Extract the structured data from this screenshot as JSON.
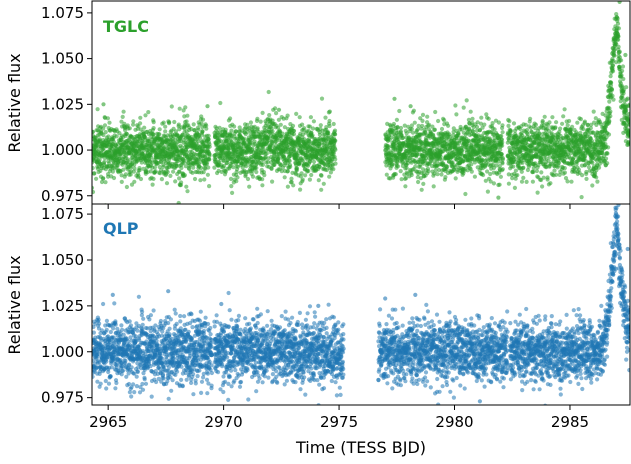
{
  "colors": {
    "tglc": "#2ca02c",
    "qlp": "#1f77b4"
  },
  "chart_data": [
    {
      "type": "scatter",
      "panel_label": "TGLC",
      "color": "#2ca02c",
      "ylabel": "Relative flux",
      "xlim": [
        2964.3,
        2987.6
      ],
      "ylim": [
        0.9705,
        1.0815
      ],
      "yticks": [
        0.975,
        1.0,
        1.025,
        1.05,
        1.075
      ],
      "ytick_labels": [
        "0.975",
        "1.000",
        "1.025",
        "1.050",
        "1.075"
      ],
      "noise_sigma": 0.0075,
      "segments": [
        {
          "x": [
            2964.3,
            2969.4
          ],
          "baseline": 1.0
        },
        {
          "x": [
            2969.6,
            2974.85
          ],
          "baseline": 1.0,
          "bump": {
            "x": 2972.0,
            "height": 0.008,
            "width": 0.25
          }
        },
        {
          "x": [
            2977.0,
            2982.1
          ],
          "baseline": 1.0
        },
        {
          "x": [
            2982.3,
            2987.6
          ],
          "baseline": 1.0
        }
      ],
      "flare": {
        "peak_x": 2987.05,
        "peak_y": 1.065,
        "rise_days": 0.35,
        "decay_days": 0.3
      },
      "outliers": [
        {
          "x": 2964.8,
          "y": 1.025
        },
        {
          "x": 2969.3,
          "y": 1.024
        },
        {
          "x": 2972.4,
          "y": 1.022
        },
        {
          "x": 2974.6,
          "y": 1.021
        },
        {
          "x": 2977.4,
          "y": 1.028
        },
        {
          "x": 2978.1,
          "y": 1.024
        },
        {
          "x": 2981.9,
          "y": 0.974
        },
        {
          "x": 2987.15,
          "y": 1.081
        },
        {
          "x": 2987.4,
          "y": 1.052
        }
      ]
    },
    {
      "type": "scatter",
      "panel_label": "QLP",
      "color": "#1f77b4",
      "ylabel": "Relative flux",
      "xlabel": "Time (TESS BJD)",
      "xlim": [
        2964.3,
        2987.6
      ],
      "ylim": [
        0.971,
        1.0805
      ],
      "xticks": [
        2965,
        2970,
        2975,
        2980,
        2985
      ],
      "xtick_labels": [
        "2965",
        "2970",
        "2975",
        "2980",
        "2985"
      ],
      "yticks": [
        0.975,
        1.0,
        1.025,
        1.05,
        1.075
      ],
      "ytick_labels": [
        "0.975",
        "1.000",
        "1.025",
        "1.050",
        "1.075"
      ],
      "noise_sigma": 0.0085,
      "segments": [
        {
          "x": [
            2964.3,
            2969.5
          ],
          "baseline": 1.0
        },
        {
          "x": [
            2969.6,
            2975.2
          ],
          "baseline": 1.0
        },
        {
          "x": [
            2976.7,
            2982.3
          ],
          "baseline": 1.0
        },
        {
          "x": [
            2982.4,
            2987.6
          ],
          "baseline": 1.0
        }
      ],
      "flare": {
        "peak_x": 2987.05,
        "peak_y": 1.067,
        "rise_days": 0.35,
        "decay_days": 0.3
      },
      "outliers": [
        {
          "x": 2965.2,
          "y": 1.031
        },
        {
          "x": 2967.6,
          "y": 1.033
        },
        {
          "x": 2969.9,
          "y": 1.026
        },
        {
          "x": 2974.1,
          "y": 1.025
        },
        {
          "x": 2977.0,
          "y": 1.029
        },
        {
          "x": 2978.3,
          "y": 1.031
        },
        {
          "x": 2981.1,
          "y": 0.973
        },
        {
          "x": 2987.1,
          "y": 1.08
        },
        {
          "x": 2987.5,
          "y": 1.056
        }
      ]
    }
  ]
}
